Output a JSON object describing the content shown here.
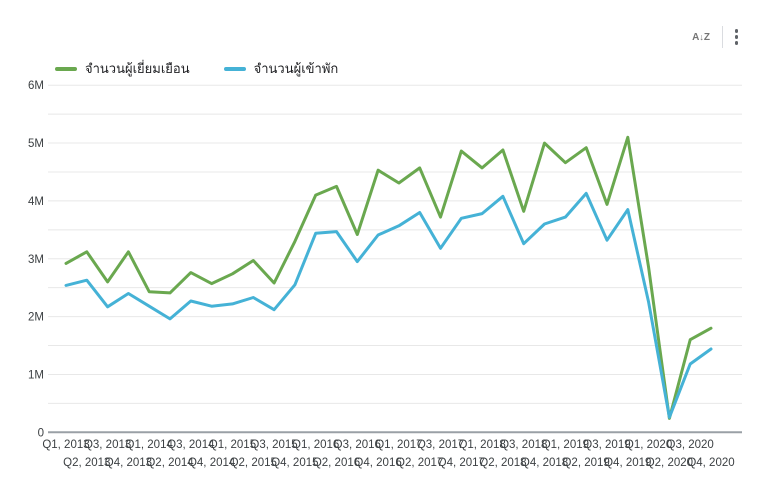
{
  "header": {
    "sort_letters": {
      "a": "A",
      "arrow": "↓",
      "z": "Z"
    }
  },
  "legend": {
    "items": [
      {
        "swatch_color": "#6aa84f"
      },
      {
        "swatch_color": "#45b2d6"
      }
    ]
  },
  "chart_data": {
    "type": "line",
    "title": "",
    "xlabel": "",
    "ylabel": "",
    "unit": "persons (millions)",
    "grid": "horizontal gridlines every 0.5M, labels every 1M",
    "legend_position": "top-left",
    "ylim_millions": [
      0,
      6
    ],
    "y_tick_labels": [
      "0",
      "1M",
      "2M",
      "3M",
      "4M",
      "5M",
      "6M"
    ],
    "x_labels": [
      "Q1, 2013",
      "Q2, 2013",
      "Q3, 2013",
      "Q4, 2013",
      "Q1, 2014",
      "Q2, 2014",
      "Q3, 2014",
      "Q4, 2014",
      "Q1, 2015",
      "Q2, 2015",
      "Q3, 2015",
      "Q4, 2015",
      "Q1, 2016",
      "Q2, 2016",
      "Q3, 2016",
      "Q4, 2016",
      "Q1, 2017",
      "Q2, 2017",
      "Q3, 2017",
      "Q4, 2017",
      "Q1, 2018",
      "Q2, 2018",
      "Q3, 2018",
      "Q4, 2018",
      "Q1, 2019",
      "Q2, 2019",
      "Q3, 2019",
      "Q4, 2019",
      "Q1, 2020",
      "Q2, 2020",
      "Q3, 2020",
      "Q4, 2020"
    ],
    "series": [
      {
        "name": "จำนวนผู้เยี่ยมเยือน",
        "color": "#6aa84f",
        "values_millions": [
          2.92,
          3.12,
          2.6,
          3.12,
          2.43,
          2.41,
          2.76,
          2.57,
          2.74,
          2.97,
          2.58,
          3.3,
          4.1,
          4.25,
          3.42,
          4.53,
          4.31,
          4.57,
          3.72,
          4.86,
          4.57,
          4.88,
          3.82,
          5.0,
          4.66,
          4.92,
          3.94,
          5.1,
          2.85,
          0.24,
          1.6,
          1.8
        ]
      },
      {
        "name": "จำนวนผู้เข้าพัก",
        "color": "#45b2d6",
        "values_millions": [
          2.54,
          2.63,
          2.17,
          2.4,
          2.18,
          1.96,
          2.27,
          2.18,
          2.22,
          2.33,
          2.12,
          2.55,
          3.44,
          3.47,
          2.95,
          3.41,
          3.57,
          3.8,
          3.18,
          3.7,
          3.78,
          4.08,
          3.26,
          3.6,
          3.72,
          4.13,
          3.32,
          3.85,
          2.25,
          0.26,
          1.18,
          1.44
        ]
      }
    ]
  }
}
